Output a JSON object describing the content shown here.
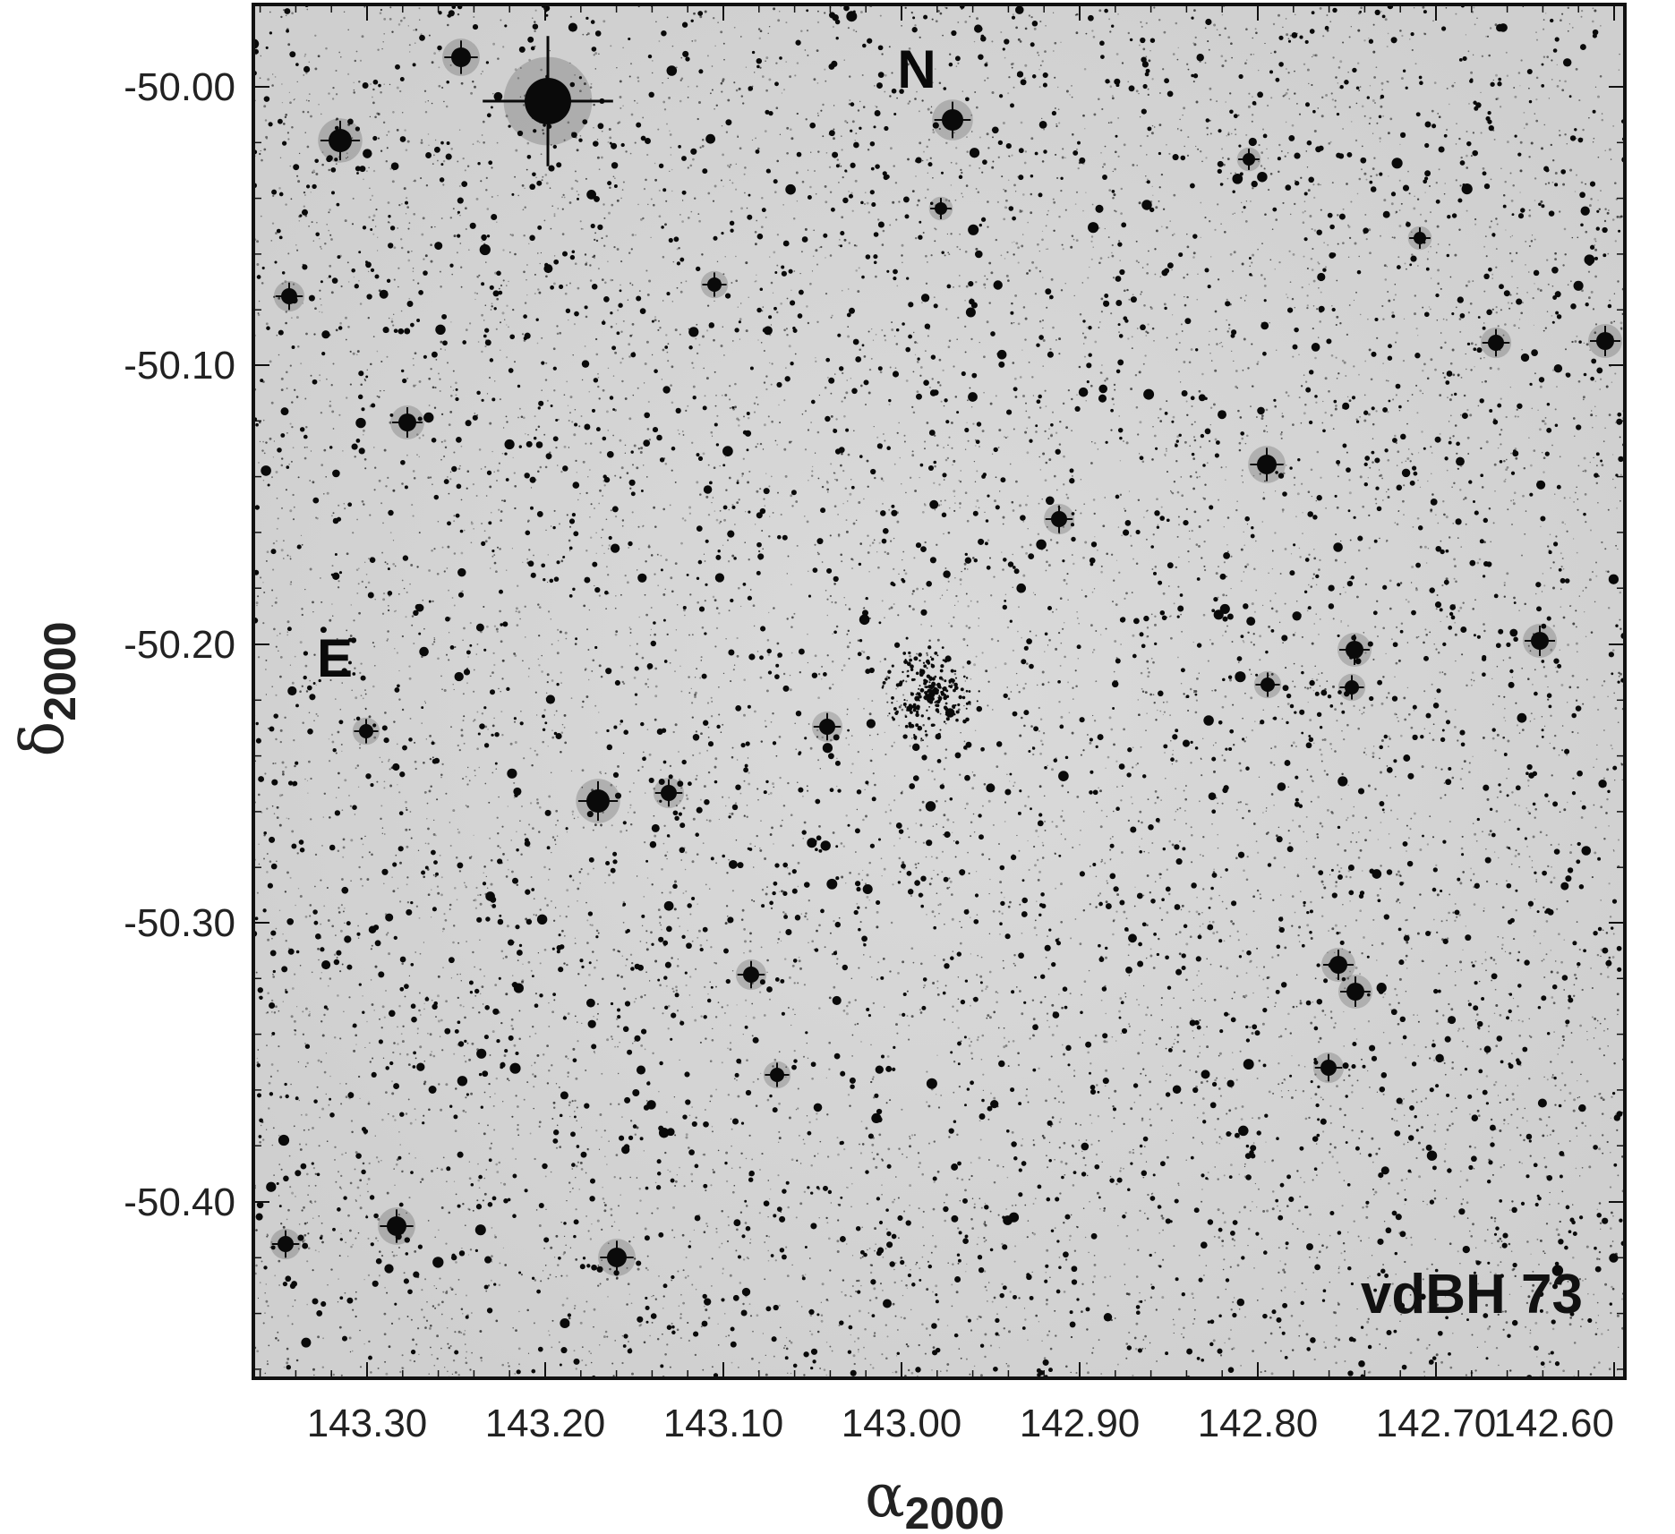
{
  "image": {
    "kind": "grayscale-inverted-sky-image",
    "background_color": "#d6d6d6",
    "star_color": "#0a0a0a",
    "frame_color": "#111111"
  },
  "labels": {
    "north": "N",
    "east": "E",
    "object_name": "vdBH 73"
  },
  "axes": {
    "x_title_symbol": "α",
    "x_title_sub": "2000",
    "y_title_symbol": "δ",
    "y_title_sub": "2000",
    "x_ticks": [
      "143.30",
      "143.20",
      "143.10",
      "143.00",
      "142.90",
      "142.80",
      "142.70",
      "142.60"
    ],
    "y_ticks": [
      "-50.00",
      "-50.10",
      "-50.20",
      "-50.30",
      "-50.40"
    ]
  }
}
